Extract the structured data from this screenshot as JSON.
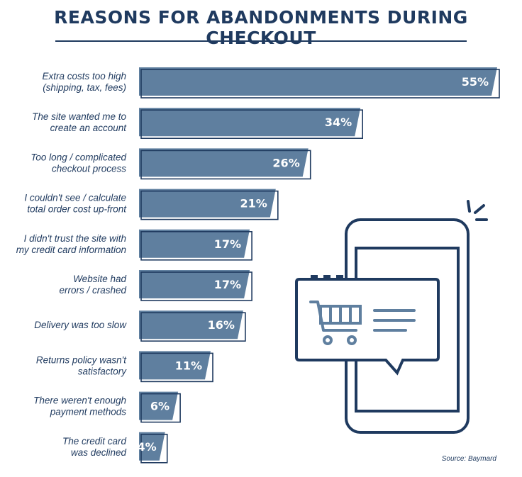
{
  "title": "REASONS FOR ABANDONMENTS DURING CHECKOUT",
  "source": "Source: Baymard",
  "colors": {
    "bar": "#5f7f9f",
    "outline": "#1f3a5f",
    "text": "#1f3a5f"
  },
  "illustration": {
    "icon": "smartphone-with-shopping-cart-chat-bubble"
  },
  "chart_data": {
    "type": "bar",
    "orientation": "horizontal",
    "categories": [
      [
        "Extra costs too high",
        "(shipping, tax, fees)"
      ],
      [
        "The site wanted me to",
        "create an account"
      ],
      [
        "Too long / complicated",
        "checkout process"
      ],
      [
        "I couldn't see / calculate",
        "total order cost up-front"
      ],
      [
        "I didn't trust the site with",
        "my credit card information"
      ],
      [
        "Website had",
        "errors / crashed"
      ],
      [
        "Delivery was too slow"
      ],
      [
        "Returns policy wasn't",
        "satisfactory"
      ],
      [
        "There weren't enough",
        "payment methods"
      ],
      [
        "The credit card",
        "was declined"
      ]
    ],
    "values": [
      55,
      34,
      26,
      21,
      17,
      17,
      16,
      11,
      6,
      4
    ],
    "value_labels": [
      "55%",
      "34%",
      "26%",
      "21%",
      "17%",
      "17%",
      "16%",
      "11%",
      "6%",
      "4%"
    ],
    "unit": "%",
    "xlim": [
      0,
      55
    ],
    "grid": false,
    "legend": "none"
  }
}
